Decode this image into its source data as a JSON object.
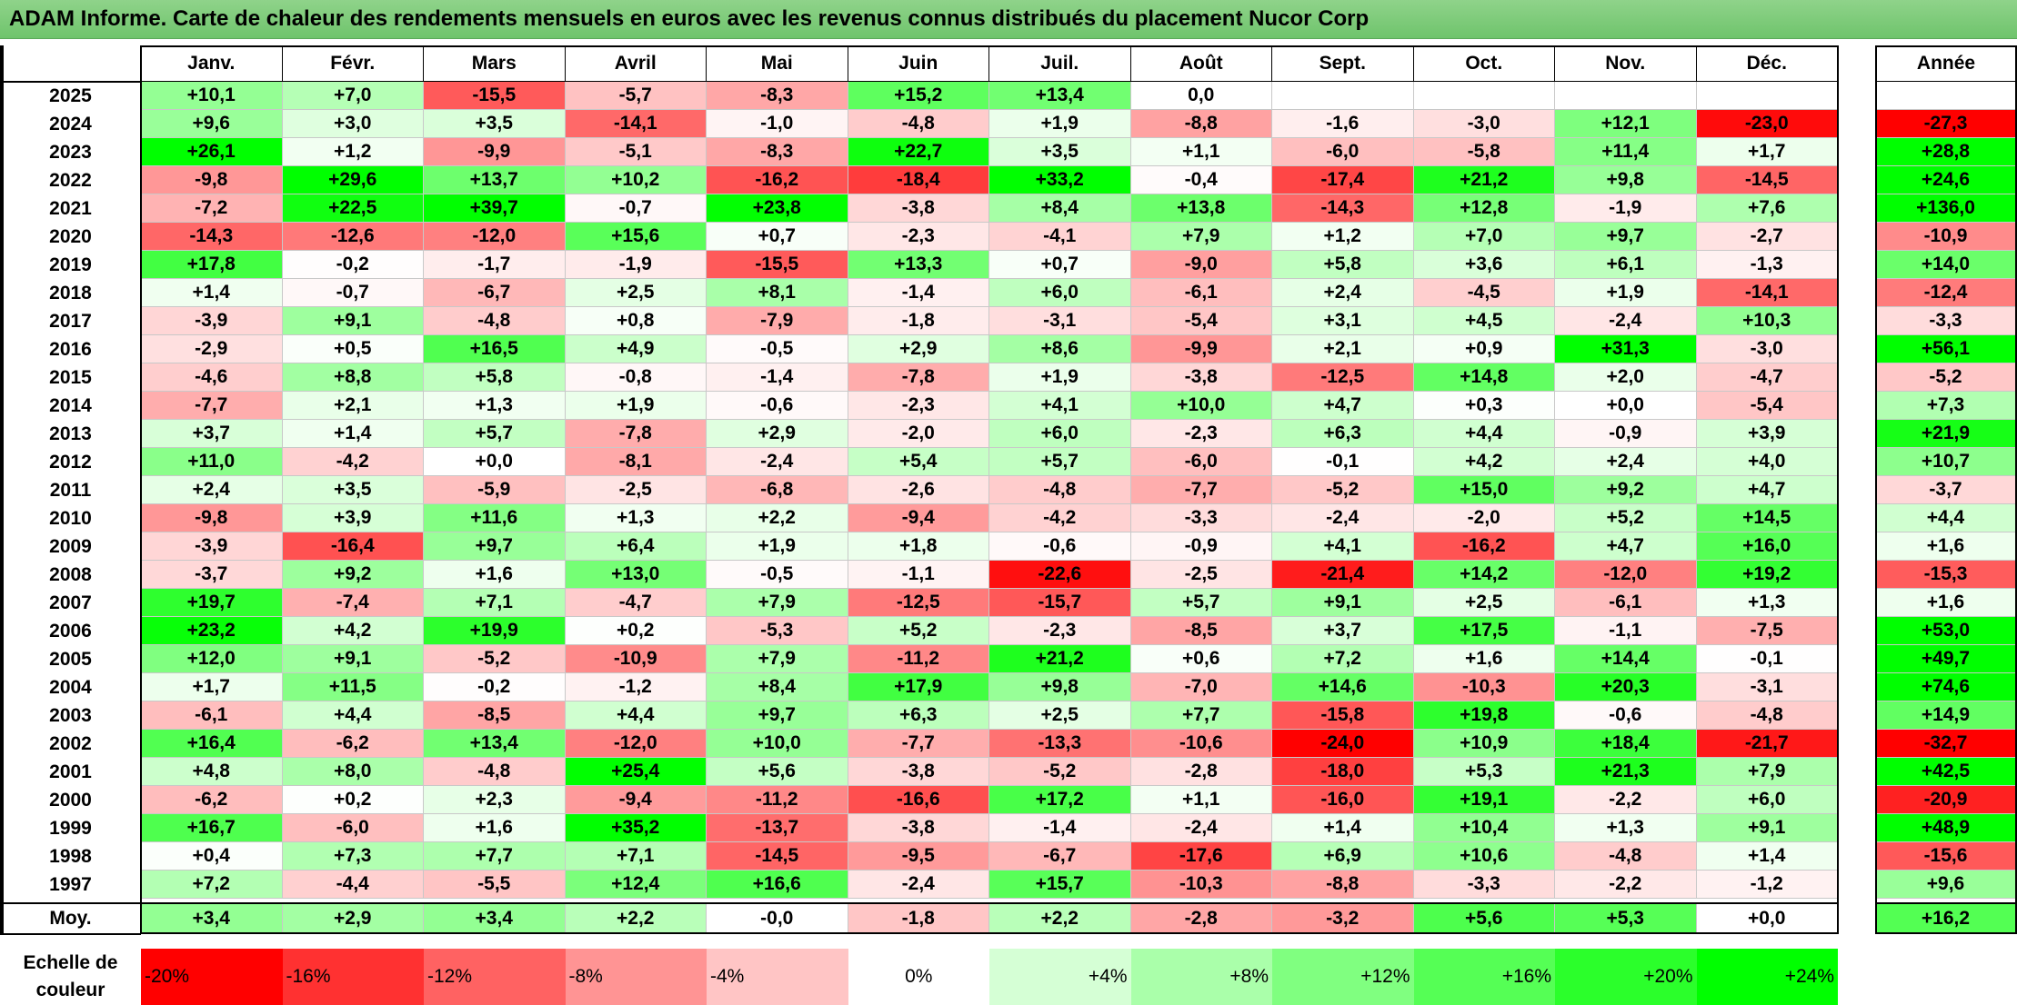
{
  "title": "ADAM Informe. Carte de chaleur des rendements mensuels en euros avec les revenus connus distribués du placement Nucor Corp",
  "chart_data": {
    "type": "heatmap",
    "months": [
      "Janv.",
      "Févr.",
      "Mars",
      "Avril",
      "Mai",
      "Juin",
      "Juil.",
      "Août",
      "Sept.",
      "Oct.",
      "Nov.",
      "Déc."
    ],
    "year_header": "Année",
    "rows": [
      {
        "year": "2025",
        "values": [
          "+10,1",
          "+7,0",
          "-15,5",
          "-5,7",
          "-8,3",
          "+15,2",
          "+13,4",
          "0,0",
          "",
          "",
          "",
          ""
        ],
        "total": ""
      },
      {
        "year": "2024",
        "values": [
          "+9,6",
          "+3,0",
          "+3,5",
          "-14,1",
          "-1,0",
          "-4,8",
          "+1,9",
          "-8,8",
          "-1,6",
          "-3,0",
          "+12,1",
          "-23,0"
        ],
        "total": "-27,3"
      },
      {
        "year": "2023",
        "values": [
          "+26,1",
          "+1,2",
          "-9,9",
          "-5,1",
          "-8,3",
          "+22,7",
          "+3,5",
          "+1,1",
          "-6,0",
          "-5,8",
          "+11,4",
          "+1,7"
        ],
        "total": "+28,8"
      },
      {
        "year": "2022",
        "values": [
          "-9,8",
          "+29,6",
          "+13,7",
          "+10,2",
          "-16,2",
          "-18,4",
          "+33,2",
          "-0,4",
          "-17,4",
          "+21,2",
          "+9,8",
          "-14,5"
        ],
        "total": "+24,6"
      },
      {
        "year": "2021",
        "values": [
          "-7,2",
          "+22,5",
          "+39,7",
          "-0,7",
          "+23,8",
          "-3,8",
          "+8,4",
          "+13,8",
          "-14,3",
          "+12,8",
          "-1,9",
          "+7,6"
        ],
        "total": "+136,0"
      },
      {
        "year": "2020",
        "values": [
          "-14,3",
          "-12,6",
          "-12,0",
          "+15,6",
          "+0,7",
          "-2,3",
          "-4,1",
          "+7,9",
          "+1,2",
          "+7,0",
          "+9,7",
          "-2,7"
        ],
        "total": "-10,9"
      },
      {
        "year": "2019",
        "values": [
          "+17,8",
          "-0,2",
          "-1,7",
          "-1,9",
          "-15,5",
          "+13,3",
          "+0,7",
          "-9,0",
          "+5,8",
          "+3,6",
          "+6,1",
          "-1,3"
        ],
        "total": "+14,0"
      },
      {
        "year": "2018",
        "values": [
          "+1,4",
          "-0,7",
          "-6,7",
          "+2,5",
          "+8,1",
          "-1,4",
          "+6,0",
          "-6,1",
          "+2,4",
          "-4,5",
          "+1,9",
          "-14,1"
        ],
        "total": "-12,4"
      },
      {
        "year": "2017",
        "values": [
          "-3,9",
          "+9,1",
          "-4,8",
          "+0,8",
          "-7,9",
          "-1,8",
          "-3,1",
          "-5,4",
          "+3,1",
          "+4,5",
          "-2,4",
          "+10,3"
        ],
        "total": "-3,3"
      },
      {
        "year": "2016",
        "values": [
          "-2,9",
          "+0,5",
          "+16,5",
          "+4,9",
          "-0,5",
          "+2,9",
          "+8,6",
          "-9,9",
          "+2,1",
          "+0,9",
          "+31,3",
          "-3,0"
        ],
        "total": "+56,1"
      },
      {
        "year": "2015",
        "values": [
          "-4,6",
          "+8,8",
          "+5,8",
          "-0,8",
          "-1,4",
          "-7,8",
          "+1,9",
          "-3,8",
          "-12,5",
          "+14,8",
          "+2,0",
          "-4,7"
        ],
        "total": "-5,2"
      },
      {
        "year": "2014",
        "values": [
          "-7,7",
          "+2,1",
          "+1,3",
          "+1,9",
          "-0,6",
          "-2,3",
          "+4,1",
          "+10,0",
          "+4,7",
          "+0,3",
          "+0,0",
          "-5,4"
        ],
        "total": "+7,3"
      },
      {
        "year": "2013",
        "values": [
          "+3,7",
          "+1,4",
          "+5,7",
          "-7,8",
          "+2,9",
          "-2,0",
          "+6,0",
          "-2,3",
          "+6,3",
          "+4,4",
          "-0,9",
          "+3,9"
        ],
        "total": "+21,9"
      },
      {
        "year": "2012",
        "values": [
          "+11,0",
          "-4,2",
          "+0,0",
          "-8,1",
          "-2,4",
          "+5,4",
          "+5,7",
          "-6,0",
          "-0,1",
          "+4,2",
          "+2,4",
          "+4,0"
        ],
        "total": "+10,7"
      },
      {
        "year": "2011",
        "values": [
          "+2,4",
          "+3,5",
          "-5,9",
          "-2,5",
          "-6,8",
          "-2,6",
          "-4,8",
          "-7,7",
          "-5,2",
          "+15,0",
          "+9,2",
          "+4,7"
        ],
        "total": "-3,7"
      },
      {
        "year": "2010",
        "values": [
          "-9,8",
          "+3,9",
          "+11,6",
          "+1,3",
          "+2,2",
          "-9,4",
          "-4,2",
          "-3,3",
          "-2,4",
          "-2,0",
          "+5,2",
          "+14,5"
        ],
        "total": "+4,4"
      },
      {
        "year": "2009",
        "values": [
          "-3,9",
          "-16,4",
          "+9,7",
          "+6,4",
          "+1,9",
          "+1,8",
          "-0,6",
          "-0,9",
          "+4,1",
          "-16,2",
          "+4,7",
          "+16,0"
        ],
        "total": "+1,6"
      },
      {
        "year": "2008",
        "values": [
          "-3,7",
          "+9,2",
          "+1,6",
          "+13,0",
          "-0,5",
          "-1,1",
          "-22,6",
          "-2,5",
          "-21,4",
          "+14,2",
          "-12,0",
          "+19,2"
        ],
        "total": "-15,3"
      },
      {
        "year": "2007",
        "values": [
          "+19,7",
          "-7,4",
          "+7,1",
          "-4,7",
          "+7,9",
          "-12,5",
          "-15,7",
          "+5,7",
          "+9,1",
          "+2,5",
          "-6,1",
          "+1,3"
        ],
        "total": "+1,6"
      },
      {
        "year": "2006",
        "values": [
          "+23,2",
          "+4,2",
          "+19,9",
          "+0,2",
          "-5,3",
          "+5,2",
          "-2,3",
          "-8,5",
          "+3,7",
          "+17,5",
          "-1,1",
          "-7,5"
        ],
        "total": "+53,0"
      },
      {
        "year": "2005",
        "values": [
          "+12,0",
          "+9,1",
          "-5,2",
          "-10,9",
          "+7,9",
          "-11,2",
          "+21,2",
          "+0,6",
          "+7,2",
          "+1,6",
          "+14,4",
          "-0,1"
        ],
        "total": "+49,7"
      },
      {
        "year": "2004",
        "values": [
          "+1,7",
          "+11,5",
          "-0,2",
          "-1,2",
          "+8,4",
          "+17,9",
          "+9,8",
          "-7,0",
          "+14,6",
          "-10,3",
          "+20,3",
          "-3,1"
        ],
        "total": "+74,6"
      },
      {
        "year": "2003",
        "values": [
          "-6,1",
          "+4,4",
          "-8,5",
          "+4,4",
          "+9,7",
          "+6,3",
          "+2,5",
          "+7,7",
          "-15,8",
          "+19,8",
          "-0,6",
          "-4,8"
        ],
        "total": "+14,9"
      },
      {
        "year": "2002",
        "values": [
          "+16,4",
          "-6,2",
          "+13,4",
          "-12,0",
          "+10,0",
          "-7,7",
          "-13,3",
          "-10,6",
          "-24,0",
          "+10,9",
          "+18,4",
          "-21,7"
        ],
        "total": "-32,7"
      },
      {
        "year": "2001",
        "values": [
          "+4,8",
          "+8,0",
          "-4,8",
          "+25,4",
          "+5,6",
          "-3,8",
          "-5,2",
          "-2,8",
          "-18,0",
          "+5,3",
          "+21,3",
          "+7,9"
        ],
        "total": "+42,5"
      },
      {
        "year": "2000",
        "values": [
          "-6,2",
          "+0,2",
          "+2,3",
          "-9,4",
          "-11,2",
          "-16,6",
          "+17,2",
          "+1,1",
          "-16,0",
          "+19,1",
          "-2,2",
          "+6,0"
        ],
        "total": "-20,9"
      },
      {
        "year": "1999",
        "values": [
          "+16,7",
          "-6,0",
          "+1,6",
          "+35,2",
          "-13,7",
          "-3,8",
          "-1,4",
          "-2,4",
          "+1,4",
          "+10,4",
          "+1,3",
          "+9,1"
        ],
        "total": "+48,9"
      },
      {
        "year": "1998",
        "values": [
          "+0,4",
          "+7,3",
          "+7,7",
          "+7,1",
          "-14,5",
          "-9,5",
          "-6,7",
          "-17,6",
          "+6,9",
          "+10,6",
          "-4,8",
          "+1,4"
        ],
        "total": "-15,6"
      },
      {
        "year": "1997",
        "values": [
          "+7,2",
          "-4,4",
          "-5,5",
          "+12,4",
          "+16,6",
          "-2,4",
          "+15,7",
          "-10,3",
          "-8,8",
          "-3,3",
          "-2,2",
          "-1,2"
        ],
        "total": "+9,6"
      }
    ],
    "mean": {
      "label": "Moy.",
      "values": [
        "+3,4",
        "+2,9",
        "+3,4",
        "+2,2",
        "-0,0",
        "-1,8",
        "+2,2",
        "-2,8",
        "-3,2",
        "+5,6",
        "+5,3",
        "+0,0"
      ],
      "total": "+16,2"
    },
    "scale": {
      "label_line1": "Echelle de",
      "label_line2": "couleur",
      "items": [
        {
          "label": "-20%",
          "value": -20,
          "color": "#ff0000"
        },
        {
          "label": "-16%",
          "value": -16,
          "color": "#ff3131"
        },
        {
          "label": "-12%",
          "value": -12,
          "color": "#ff6262"
        },
        {
          "label": "-8%",
          "value": -8,
          "color": "#ff9494"
        },
        {
          "label": "-4%",
          "value": -4,
          "color": "#ffc5c5"
        },
        {
          "label": "0%",
          "value": 0,
          "color": "#ffffff"
        },
        {
          "label": "+4%",
          "value": 4,
          "color": "#d5ffd5"
        },
        {
          "label": "+8%",
          "value": 8,
          "color": "#aaffaa"
        },
        {
          "label": "+12%",
          "value": 12,
          "color": "#80ff80"
        },
        {
          "label": "+16%",
          "value": 16,
          "color": "#55ff55"
        },
        {
          "label": "+20%",
          "value": 20,
          "color": "#2bff2b"
        },
        {
          "label": "+24%",
          "value": 24,
          "color": "#00ff00"
        }
      ]
    }
  }
}
